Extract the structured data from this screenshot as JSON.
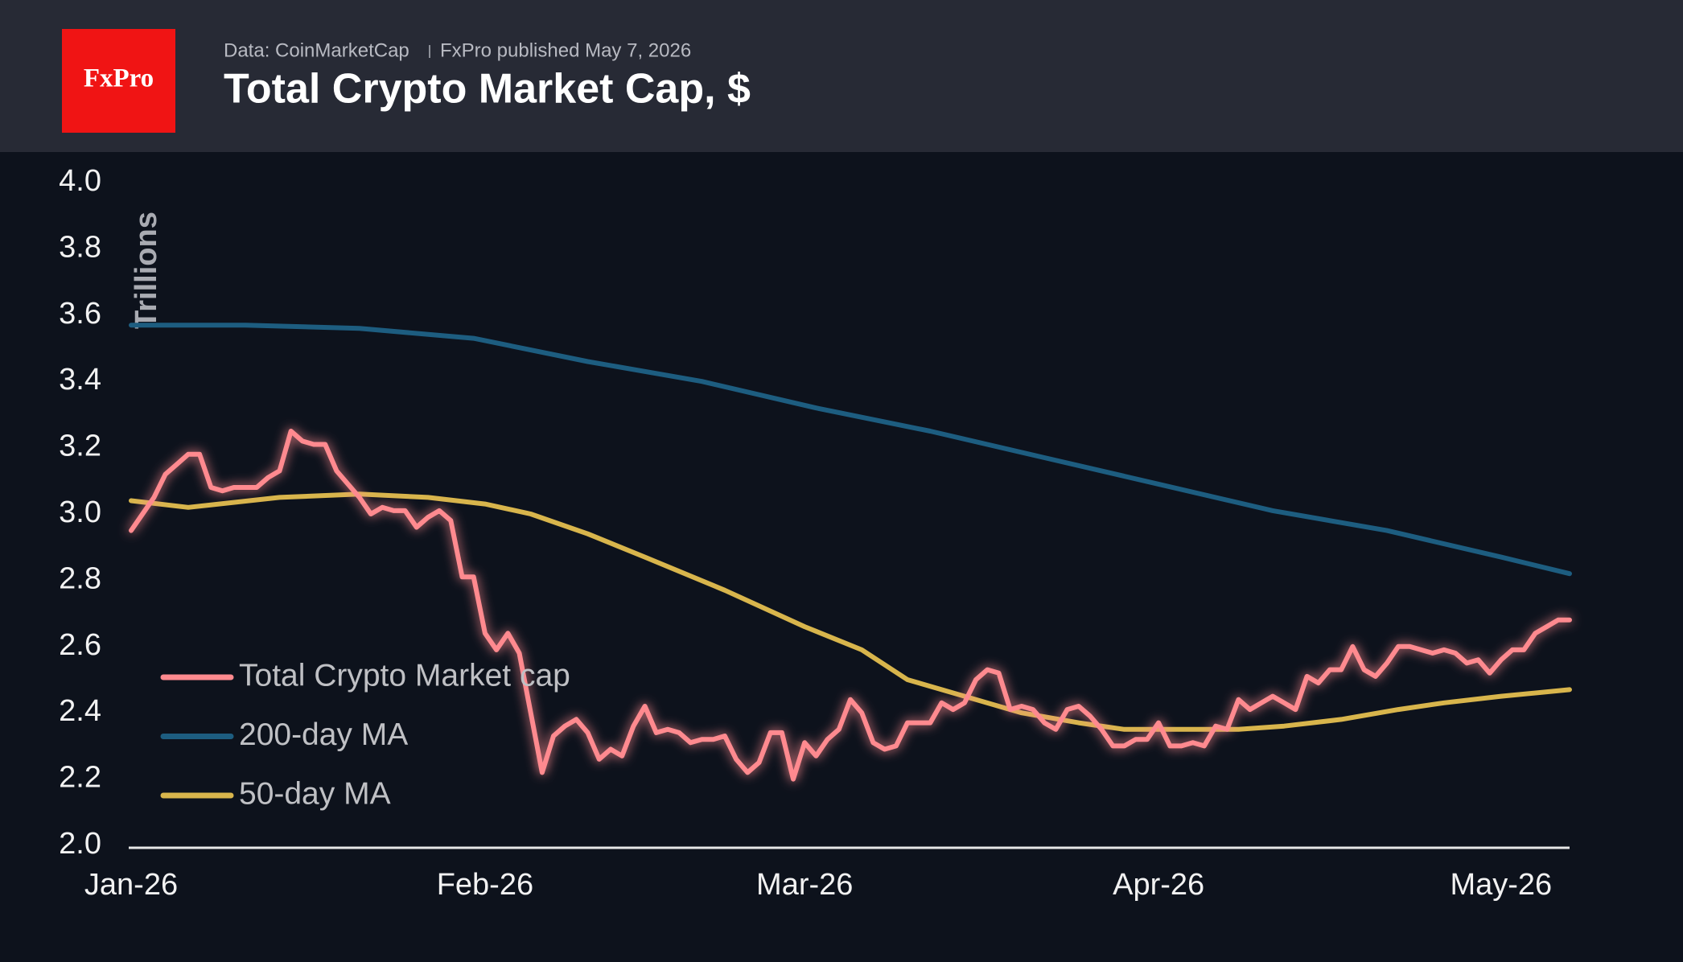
{
  "chart_data": {
    "type": "line",
    "logo": "FxPro",
    "source": "Data: CoinMarketCap",
    "subtitle": "FxPro published May 7, 2026",
    "title": "Total Crypto Market Cap, $",
    "ylabel": "Trillions",
    "xlim": [
      0,
      126
    ],
    "xticks": [
      {
        "value": 0,
        "label": "Jan-26"
      },
      {
        "value": 31,
        "label": "Feb-26"
      },
      {
        "value": 59,
        "label": "Mar-26"
      },
      {
        "value": 90,
        "label": "Apr-26"
      },
      {
        "value": 120,
        "label": "May-26"
      }
    ],
    "ylim": [
      2.0,
      4.0
    ],
    "yticks": [
      {
        "value": 2.0,
        "label": "2.0"
      },
      2.2,
      2.4,
      2.6,
      2.8,
      {
        "value": 3.0,
        "label": "3.0"
      },
      3.2,
      3.4,
      3.6,
      3.8,
      {
        "value": 4.0,
        "label": "4.0"
      }
    ],
    "grid": false,
    "legend": "lower-left",
    "series": [
      {
        "name": "Total Crypto Market cap",
        "color": "#ff8a8f",
        "x": [
          0,
          1,
          2,
          3,
          4,
          5,
          6,
          7,
          8,
          9,
          10,
          11,
          12,
          13,
          14,
          15,
          16,
          17,
          18,
          19,
          20,
          21,
          22,
          23,
          24,
          25,
          26,
          27,
          28,
          29,
          30,
          31,
          32,
          33,
          34,
          35,
          36,
          37,
          38,
          39,
          40,
          41,
          42,
          43,
          44,
          45,
          46,
          47,
          48,
          49,
          50,
          51,
          52,
          53,
          54,
          55,
          56,
          57,
          58,
          59,
          60,
          61,
          62,
          63,
          64,
          65,
          66,
          67,
          68,
          69,
          70,
          71,
          72,
          73,
          74,
          75,
          76,
          77,
          78,
          79,
          80,
          81,
          82,
          83,
          84,
          85,
          86,
          87,
          88,
          89,
          90,
          91,
          92,
          93,
          94,
          95,
          96,
          97,
          98,
          99,
          100,
          101,
          102,
          103,
          104,
          105,
          106,
          107,
          108,
          109,
          110,
          111,
          112,
          113,
          114,
          115,
          116,
          117,
          118,
          119,
          120,
          121,
          122,
          123,
          124,
          125,
          126
        ],
        "values": [
          2.95,
          3.0,
          3.05,
          3.12,
          3.15,
          3.18,
          3.18,
          3.08,
          3.07,
          3.08,
          3.08,
          3.08,
          3.11,
          3.13,
          3.25,
          3.22,
          3.21,
          3.21,
          3.13,
          3.09,
          3.05,
          3.0,
          3.02,
          3.01,
          3.01,
          2.96,
          2.99,
          3.01,
          2.98,
          2.81,
          2.81,
          2.64,
          2.59,
          2.64,
          2.58,
          2.4,
          2.22,
          2.33,
          2.36,
          2.38,
          2.34,
          2.26,
          2.29,
          2.27,
          2.36,
          2.42,
          2.34,
          2.35,
          2.34,
          2.31,
          2.32,
          2.32,
          2.33,
          2.26,
          2.22,
          2.25,
          2.34,
          2.34,
          2.2,
          2.31,
          2.27,
          2.32,
          2.35,
          2.44,
          2.4,
          2.31,
          2.29,
          2.3,
          2.37,
          2.37,
          2.37,
          2.43,
          2.41,
          2.43,
          2.5,
          2.53,
          2.52,
          2.41,
          2.42,
          2.41,
          2.37,
          2.35,
          2.41,
          2.42,
          2.39,
          2.35,
          2.3,
          2.3,
          2.32,
          2.32,
          2.37,
          2.3,
          2.3,
          2.31,
          2.3,
          2.36,
          2.35,
          2.44,
          2.41,
          2.43,
          2.45,
          2.43,
          2.41,
          2.51,
          2.49,
          2.53,
          2.53,
          2.6,
          2.53,
          2.51,
          2.55,
          2.6,
          2.6,
          2.59,
          2.58,
          2.59,
          2.58,
          2.55,
          2.56,
          2.52,
          2.56,
          2.59,
          2.59,
          2.64,
          2.66,
          2.68,
          2.68
        ]
      },
      {
        "name": "200-day MA",
        "color": "#1d5d80",
        "x": [
          0,
          10,
          20,
          30,
          40,
          50,
          60,
          70,
          80,
          90,
          100,
          110,
          120,
          126
        ],
        "values": [
          3.57,
          3.57,
          3.56,
          3.53,
          3.46,
          3.4,
          3.32,
          3.25,
          3.17,
          3.09,
          3.01,
          2.95,
          2.87,
          2.82
        ]
      },
      {
        "name": "50-day MA",
        "color": "#d8b54c",
        "x": [
          0,
          5,
          13,
          20,
          26,
          31,
          35,
          40,
          45,
          52,
          59,
          64,
          68,
          73,
          78,
          83,
          87,
          92,
          97,
          101,
          106,
          111,
          115,
          120,
          126
        ],
        "values": [
          3.04,
          3.02,
          3.05,
          3.06,
          3.05,
          3.03,
          3.0,
          2.94,
          2.87,
          2.77,
          2.66,
          2.59,
          2.5,
          2.45,
          2.4,
          2.37,
          2.35,
          2.35,
          2.35,
          2.36,
          2.38,
          2.41,
          2.43,
          2.45,
          2.47
        ]
      }
    ]
  }
}
